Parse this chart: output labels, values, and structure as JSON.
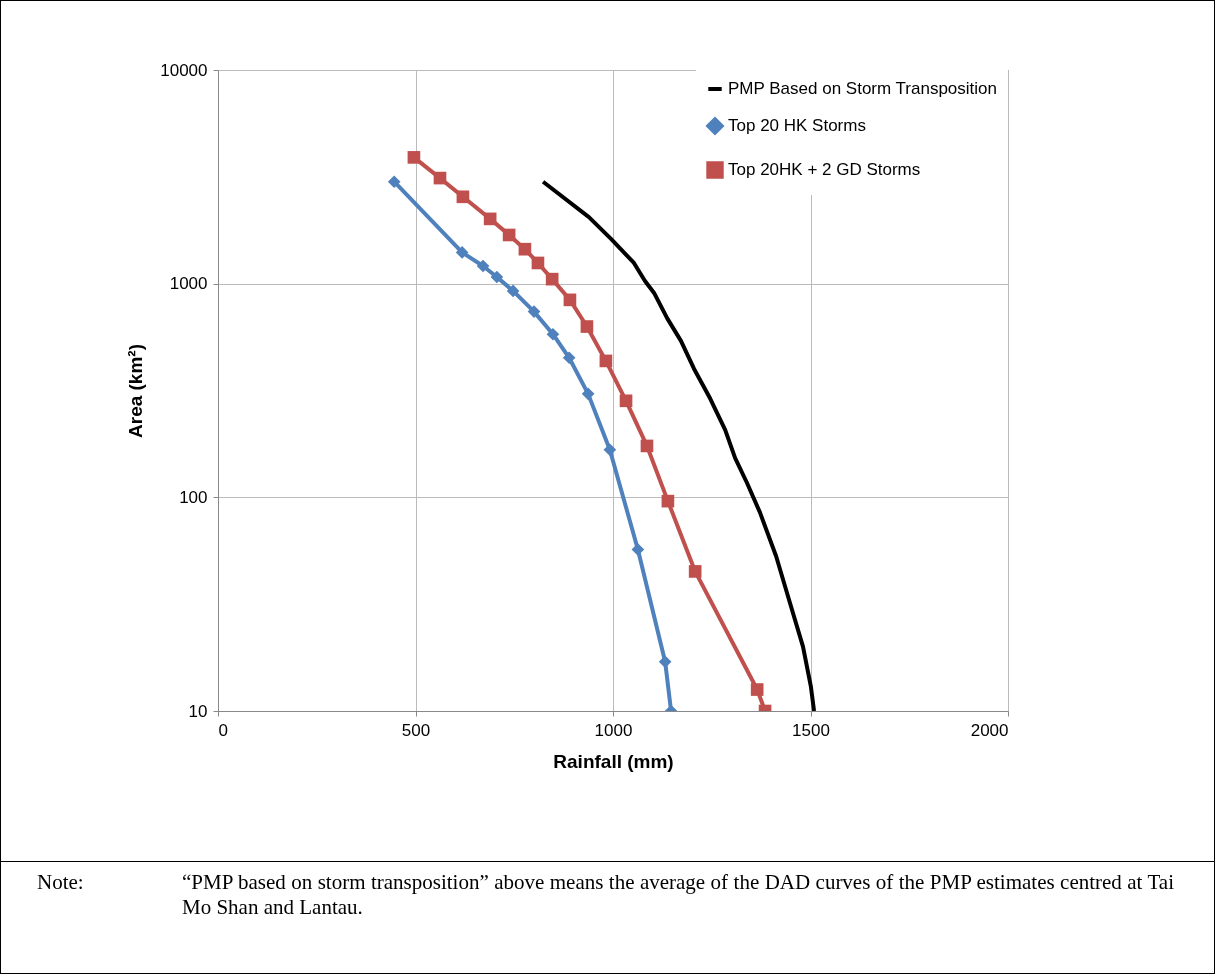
{
  "chart_data": {
    "type": "line",
    "xlabel": "Rainfall (mm)",
    "ylabel": "Area (km²)",
    "log": "y",
    "xlim": [
      0,
      2000
    ],
    "xticks": [
      0,
      500,
      1000,
      1500,
      2000
    ],
    "ylim": [
      10,
      10000
    ],
    "yticks": [
      10,
      100,
      1000,
      10000
    ],
    "grid": true,
    "legend": "top right",
    "line_style": "solid",
    "series": [
      {
        "name": "PMP Based on Storm Transposition",
        "color": "#000000",
        "marker": "none",
        "x": [
          823,
          939,
          995,
          1053,
          1081,
          1104,
          1137,
          1172,
          1205,
          1246,
          1284,
          1309,
          1339,
          1372,
          1413,
          1446,
          1481,
          1501,
          1509
        ],
        "values": [
          3000,
          2050,
          1620,
          1250,
          1030,
          905,
          690,
          540,
          400,
          290,
          207,
          153,
          117,
          85,
          53,
          33,
          20,
          13,
          10
        ]
      },
      {
        "name": "Top 20 HK Storms",
        "color": "#4f81bd",
        "marker": "diamond",
        "x": [
          446,
          618,
          671,
          706,
          747,
          800,
          848,
          889,
          937,
          992,
          1063,
          1132,
          1147
        ],
        "values": [
          3000,
          1400,
          1210,
          1075,
          925,
          740,
          580,
          450,
          305,
          167,
          57,
          17,
          10
        ]
      },
      {
        "name": "Top 20HK + 2 GD Storms",
        "color": "#c0504d",
        "marker": "square",
        "x": [
          496,
          562,
          620,
          689,
          737,
          777,
          810,
          846,
          891,
          934,
          982,
          1033,
          1086,
          1139,
          1208,
          1365,
          1385
        ],
        "values": [
          3900,
          3120,
          2550,
          2010,
          1690,
          1450,
          1250,
          1050,
          840,
          630,
          435,
          283,
          174,
          96,
          45,
          12.6,
          10
        ]
      }
    ],
    "annotations": [
      "Note:",
      "“PMP based on storm transposition” above means the average of the DAD curves of the PMP estimates centred at Tai Mo Shan and Lantau."
    ]
  }
}
